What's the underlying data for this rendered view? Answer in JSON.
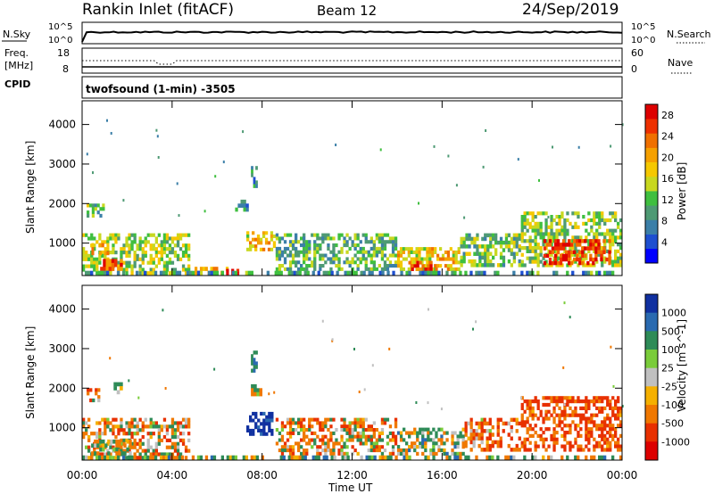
{
  "header": {
    "station": "Rankin Inlet (fitACF)",
    "beam": "Beam 12",
    "date": "24/Sep/2019"
  },
  "mini_panels": {
    "nsky": {
      "label": "N.Sky",
      "left_ticks": [
        "10^5",
        "10^0"
      ]
    },
    "nsearch": {
      "label": "N.Search",
      "right_ticks": [
        "10^5",
        "10^0"
      ]
    },
    "freq": {
      "label_line1": "Freq.",
      "label_line2": "[MHz]",
      "left_ticks": [
        "18",
        "8"
      ]
    },
    "nave": {
      "label": "Nave",
      "right_ticks": [
        "60",
        "0"
      ]
    },
    "cpid": {
      "label": "CPID",
      "text": "twofsound (1-min) -3505"
    }
  },
  "chart_data": [
    {
      "type": "heatmap",
      "title": "",
      "xlabel": "Time UT",
      "ylabel": "Slant Range [km]",
      "x_ticks": [
        "00:00",
        "04:00",
        "08:00",
        "12:00",
        "16:00",
        "20:00",
        "00:00"
      ],
      "xlim_hours": [
        0,
        24
      ],
      "y_ticks": [
        1000,
        2000,
        3000,
        4000
      ],
      "ylim": [
        180,
        4600
      ],
      "colorbar": {
        "label": "Power [dB]",
        "ticks": [
          4,
          8,
          12,
          16,
          20,
          24,
          28
        ],
        "range": [
          0,
          30
        ],
        "colors": [
          "#0000ff",
          "#1e4fd0",
          "#3b7fa8",
          "#4e9a74",
          "#3fbf3f",
          "#c8d820",
          "#f5c800",
          "#f5a000",
          "#f07000",
          "#ee3000",
          "#dd0000"
        ]
      },
      "echo_regions": [
        {
          "t0": 0.0,
          "t1": 4.8,
          "r0": 200,
          "r1": 1250,
          "v": 14
        },
        {
          "t0": 0.3,
          "t1": 1.2,
          "r0": 700,
          "r1": 1000,
          "v": 22
        },
        {
          "t0": 0.8,
          "t1": 1.8,
          "r0": 300,
          "r1": 600,
          "v": 24
        },
        {
          "t0": 0.2,
          "t1": 1.0,
          "r0": 1650,
          "r1": 2000,
          "v": 12
        },
        {
          "t0": 5.0,
          "t1": 6.5,
          "r0": 200,
          "r1": 400,
          "v": 20
        },
        {
          "t0": 6.4,
          "t1": 7.2,
          "r0": 200,
          "r1": 350,
          "v": 26
        },
        {
          "t0": 7.3,
          "t1": 8.6,
          "r0": 800,
          "r1": 1300,
          "v": 18
        },
        {
          "t0": 7.5,
          "t1": 7.8,
          "r0": 2400,
          "r1": 2950,
          "v": 8
        },
        {
          "t0": 6.8,
          "t1": 7.4,
          "r0": 1800,
          "r1": 2100,
          "v": 10
        },
        {
          "t0": 8.6,
          "t1": 14.0,
          "r0": 300,
          "r1": 1250,
          "v": 11
        },
        {
          "t0": 14.0,
          "t1": 16.8,
          "r0": 300,
          "r1": 900,
          "v": 18
        },
        {
          "t0": 14.5,
          "t1": 15.8,
          "r0": 300,
          "r1": 550,
          "v": 26
        },
        {
          "t0": 16.8,
          "t1": 19.5,
          "r0": 400,
          "r1": 1250,
          "v": 12
        },
        {
          "t0": 19.5,
          "t1": 24.0,
          "r0": 400,
          "r1": 1800,
          "v": 14
        },
        {
          "t0": 20.5,
          "t1": 23.5,
          "r0": 450,
          "r1": 1100,
          "v": 27
        },
        {
          "t0": 0.0,
          "t1": 24.0,
          "r0": 180,
          "r1": 300,
          "v": 9
        }
      ]
    },
    {
      "type": "heatmap",
      "title": "",
      "xlabel": "Time UT",
      "ylabel": "Slant Range [km]",
      "x_ticks": [
        "00:00",
        "04:00",
        "08:00",
        "12:00",
        "16:00",
        "20:00",
        "00:00"
      ],
      "xlim_hours": [
        0,
        24
      ],
      "y_ticks": [
        1000,
        2000,
        3000,
        4000
      ],
      "ylim": [
        180,
        4600
      ],
      "colorbar": {
        "label": "Velocity [m s^-1]",
        "ticks": [
          "1000",
          "500",
          "100",
          "25",
          "-25",
          "-100",
          "-500",
          "-1000"
        ],
        "colors": [
          "#1030a0",
          "#2a6ab0",
          "#2e8b57",
          "#7acc3a",
          "#c0c0c0",
          "#f5b000",
          "#f07800",
          "#e83000",
          "#dd0000"
        ]
      },
      "echo_regions": [
        {
          "t0": 0.0,
          "t1": 4.8,
          "r0": 200,
          "r1": 1250,
          "v": -100
        },
        {
          "t0": 0.4,
          "t1": 2.2,
          "r0": 300,
          "r1": 700,
          "v": 0
        },
        {
          "t0": 0.2,
          "t1": 0.8,
          "r0": 1650,
          "r1": 2000,
          "v": -150
        },
        {
          "t0": 1.4,
          "t1": 1.8,
          "r0": 1850,
          "r1": 2150,
          "v": 0
        },
        {
          "t0": 7.3,
          "t1": 8.5,
          "r0": 800,
          "r1": 1400,
          "v": 800
        },
        {
          "t0": 7.5,
          "t1": 7.8,
          "r0": 2400,
          "r1": 2950,
          "v": 200
        },
        {
          "t0": 7.5,
          "t1": 8.0,
          "r0": 1800,
          "r1": 2100,
          "v": 0
        },
        {
          "t0": 8.6,
          "t1": 14.0,
          "r0": 300,
          "r1": 1250,
          "v": -120
        },
        {
          "t0": 14.0,
          "t1": 17.0,
          "r0": 300,
          "r1": 1000,
          "v": 60
        },
        {
          "t0": 17.0,
          "t1": 19.5,
          "r0": 400,
          "r1": 1250,
          "v": -200
        },
        {
          "t0": 19.5,
          "t1": 24.0,
          "r0": 400,
          "r1": 1800,
          "v": -300
        },
        {
          "t0": 0.0,
          "t1": 24.0,
          "r0": 180,
          "r1": 300,
          "v": 50
        }
      ]
    }
  ],
  "colors": {
    "frame": "#000000",
    "background": "#ffffff"
  }
}
